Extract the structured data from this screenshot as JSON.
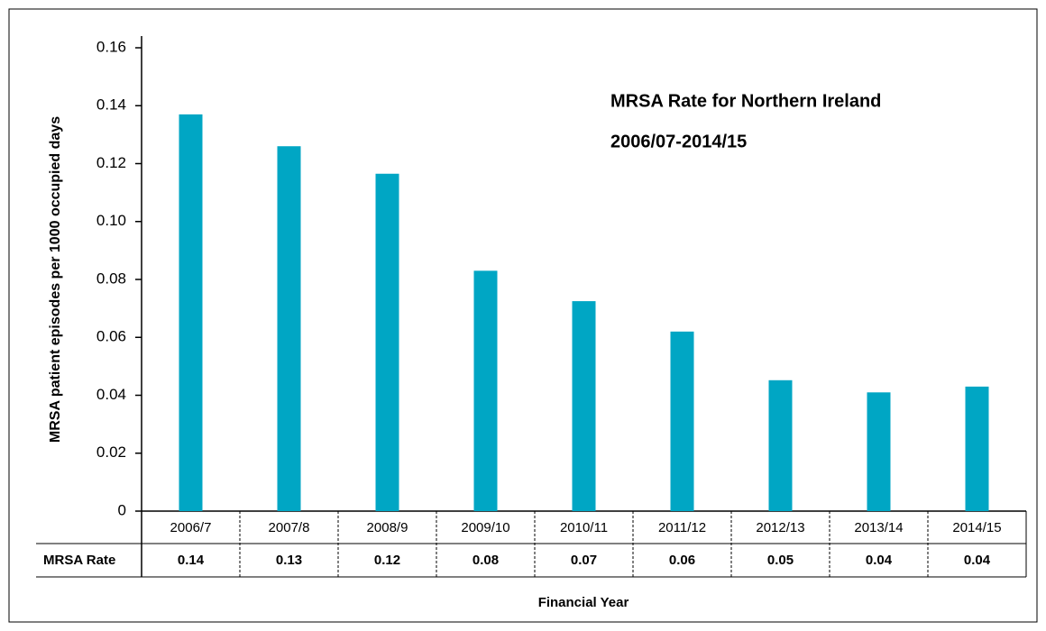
{
  "chart_data": {
    "type": "bar",
    "title": [
      "MRSA Rate for Northern Ireland",
      "2006/07-2014/15"
    ],
    "y_label": "MRSA patient episodes per 1000 occupied days",
    "x_label": "Financial Year",
    "table_row_label": "MRSA Rate",
    "categories": [
      "2006/7",
      "2007/8",
      "2008/9",
      "2009/10",
      "2010/11",
      "2011/12",
      "2012/13",
      "2013/14",
      "2014/15"
    ],
    "values": [
      0.137,
      0.126,
      0.1165,
      0.083,
      0.0725,
      0.062,
      0.0452,
      0.041,
      0.043
    ],
    "value_labels": [
      "0.14",
      "0.13",
      "0.12",
      "0.08",
      "0.07",
      "0.06",
      "0.05",
      "0.04",
      "0.04"
    ],
    "color": "#00a6c4",
    "ylim": [
      0,
      0.16
    ],
    "yticks": [
      0,
      0.02,
      0.04,
      0.06,
      0.08,
      {
        "value": 0.1,
        "label": "0.10"
      },
      0.12,
      0.14,
      0.16
    ],
    "grid": false
  }
}
